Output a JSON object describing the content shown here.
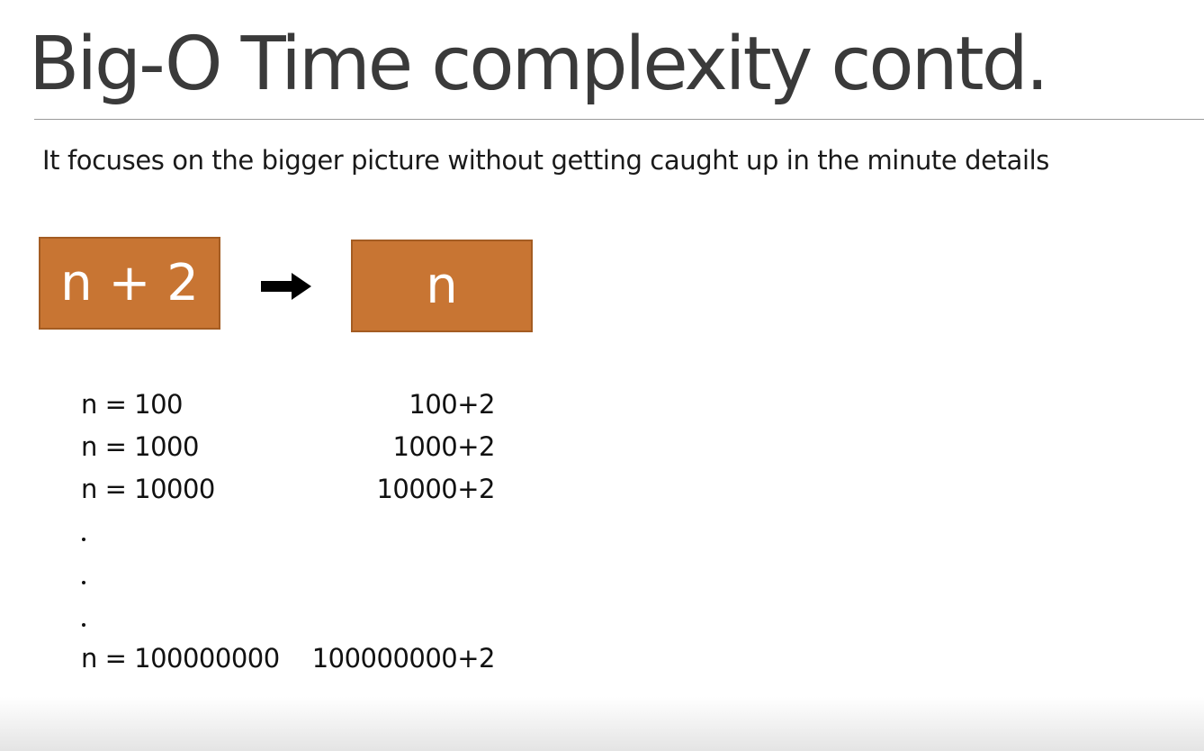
{
  "slide": {
    "title": "Big-O Time complexity contd.",
    "subtitle": "It focuses on the bigger picture without getting caught up in the minute details"
  },
  "diagram": {
    "left_box": "n + 2",
    "right_box": "n",
    "arrow_icon": "right-arrow-icon",
    "box_color": "#c87533"
  },
  "rows": [
    {
      "n": "n = 100",
      "value": "100+2"
    },
    {
      "n": "n = 1000",
      "value": "1000+2"
    },
    {
      "n": "n = 10000",
      "value": "10000+2"
    },
    {
      "n": "n = 100000000",
      "value": "100000000+2"
    }
  ]
}
